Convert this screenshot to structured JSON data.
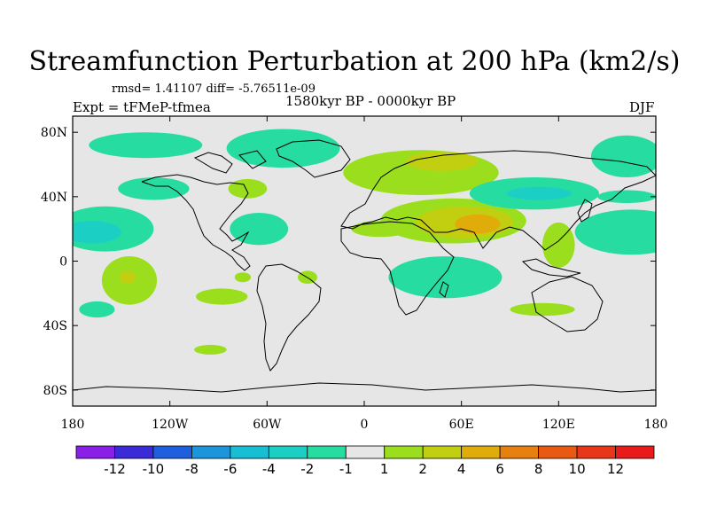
{
  "chart_data": {
    "type": "heatmap",
    "title": "Streamfunction Perturbation at 200 hPa (km2/s)",
    "stats_text": "rmsd= 1.41107 diff= -5.76511e-09",
    "left_label": "Expt = tFMeP-tfmea",
    "center_label": "1580kyr BP - 0000kyr BP",
    "right_label": "DJF",
    "x_ticks": [
      {
        "lon": -180,
        "label": "180"
      },
      {
        "lon": -120,
        "label": "120W"
      },
      {
        "lon": -60,
        "label": "60W"
      },
      {
        "lon": 0,
        "label": "0"
      },
      {
        "lon": 60,
        "label": "60E"
      },
      {
        "lon": 120,
        "label": "120E"
      },
      {
        "lon": 180,
        "label": "180"
      }
    ],
    "y_ticks": [
      {
        "lat": 80,
        "label": "80N"
      },
      {
        "lat": 40,
        "label": "40N"
      },
      {
        "lat": 0,
        "label": "0"
      },
      {
        "lat": -40,
        "label": "40S"
      },
      {
        "lat": -80,
        "label": "80S"
      }
    ],
    "xlim": [
      -180,
      180
    ],
    "ylim": [
      -90,
      90
    ],
    "colorbar": {
      "levels": [
        -12,
        -10,
        -8,
        -6,
        -4,
        -2,
        -1,
        1,
        2,
        4,
        6,
        8,
        10,
        12
      ],
      "labels": [
        "-12",
        "-10",
        "-8",
        "-6",
        "-4",
        "-2",
        "-1",
        "1",
        "2",
        "4",
        "6",
        "8",
        "10",
        "12"
      ],
      "colors": [
        "#8a1fe8",
        "#3a2ad8",
        "#1e5fe0",
        "#1b95dc",
        "#18bed4",
        "#1ccfc4",
        "#26dca0",
        "#e6e6e6",
        "#9ade1e",
        "#c2cf10",
        "#e0ac0a",
        "#e88010",
        "#e85a12",
        "#e83618",
        "#e81a1a"
      ]
    },
    "anomaly_regions": [
      {
        "lon": 35,
        "lat": 55,
        "rx": 48,
        "ry": 14,
        "value": 1.5
      },
      {
        "lon": 48,
        "lat": 62,
        "rx": 22,
        "ry": 6,
        "value": 3
      },
      {
        "lon": 55,
        "lat": 25,
        "rx": 45,
        "ry": 14,
        "value": 1.5
      },
      {
        "lon": 62,
        "lat": 24,
        "rx": 30,
        "ry": 10,
        "value": 3
      },
      {
        "lon": 70,
        "lat": 23,
        "rx": 14,
        "ry": 6,
        "value": 5
      },
      {
        "lon": 120,
        "lat": 10,
        "rx": 10,
        "ry": 14,
        "value": 1.5
      },
      {
        "lon": 10,
        "lat": 20,
        "rx": 18,
        "ry": 5,
        "value": 1.5
      },
      {
        "lon": 105,
        "lat": 42,
        "rx": 40,
        "ry": 10,
        "value": -1.5
      },
      {
        "lon": 108,
        "lat": 42,
        "rx": 20,
        "ry": 4,
        "value": -3
      },
      {
        "lon": 165,
        "lat": 18,
        "rx": 35,
        "ry": 14,
        "value": -1.5
      },
      {
        "lon": -160,
        "lat": 20,
        "rx": 30,
        "ry": 14,
        "value": -1.5
      },
      {
        "lon": -168,
        "lat": 18,
        "rx": 18,
        "ry": 7,
        "value": -3
      },
      {
        "lon": -65,
        "lat": 20,
        "rx": 18,
        "ry": 10,
        "value": -1.5
      },
      {
        "lon": -130,
        "lat": 45,
        "rx": 22,
        "ry": 7,
        "value": -1.5
      },
      {
        "lon": -50,
        "lat": 70,
        "rx": 35,
        "ry": 12,
        "value": -1.5
      },
      {
        "lon": -135,
        "lat": 72,
        "rx": 35,
        "ry": 8,
        "value": -1.5
      },
      {
        "lon": -72,
        "lat": 45,
        "rx": 12,
        "ry": 6,
        "value": 1.5
      },
      {
        "lon": -145,
        "lat": -12,
        "rx": 17,
        "ry": 15,
        "value": 1.5
      },
      {
        "lon": -146,
        "lat": -10,
        "rx": 5,
        "ry": 4,
        "value": 3
      },
      {
        "lon": 50,
        "lat": -10,
        "rx": 35,
        "ry": 13,
        "value": -1.5
      },
      {
        "lon": 110,
        "lat": -30,
        "rx": 20,
        "ry": 4,
        "value": 1.5
      },
      {
        "lon": 162,
        "lat": 65,
        "rx": 22,
        "ry": 13,
        "value": -1.5
      },
      {
        "lon": 162,
        "lat": 40,
        "rx": 18,
        "ry": 4,
        "value": -1.5
      },
      {
        "lon": -165,
        "lat": -30,
        "rx": 11,
        "ry": 5,
        "value": -1.5
      },
      {
        "lon": -88,
        "lat": -22,
        "rx": 16,
        "ry": 5,
        "value": 1.5
      },
      {
        "lon": -75,
        "lat": -10,
        "rx": 5,
        "ry": 3,
        "value": 1.5
      },
      {
        "lon": -95,
        "lat": -55,
        "rx": 10,
        "ry": 3,
        "value": 1.5
      },
      {
        "lon": -35,
        "lat": -10,
        "rx": 6,
        "ry": 4,
        "value": 1.5
      }
    ]
  }
}
